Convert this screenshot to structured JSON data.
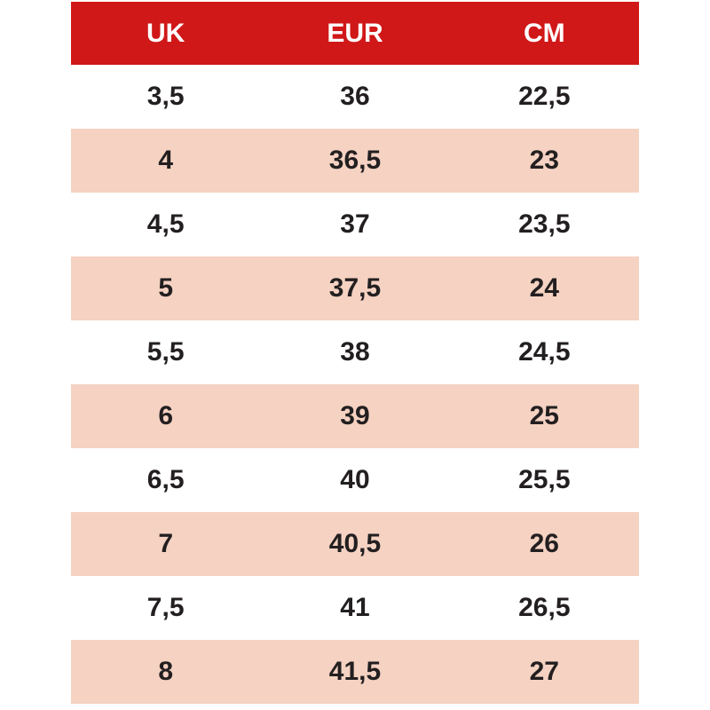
{
  "table": {
    "columns": [
      {
        "key": "uk",
        "label": "UK"
      },
      {
        "key": "eur",
        "label": "EUR"
      },
      {
        "key": "cm",
        "label": "CM"
      }
    ],
    "rows": [
      [
        "3,5",
        "36",
        "22,5"
      ],
      [
        "4",
        "36,5",
        "23"
      ],
      [
        "4,5",
        "37",
        "23,5"
      ],
      [
        "5",
        "37,5",
        "24"
      ],
      [
        "5,5",
        "38",
        "24,5"
      ],
      [
        "6",
        "39",
        "25"
      ],
      [
        "6,5",
        "40",
        "25,5"
      ],
      [
        "7",
        "40,5",
        "26"
      ],
      [
        "7,5",
        "41",
        "26,5"
      ],
      [
        "8",
        "41,5",
        "27"
      ]
    ]
  },
  "colors": {
    "header_bg": "#d01818",
    "header_text": "#ffffff",
    "row_bg": "#ffffff",
    "row_alt_bg": "#f5d2c2",
    "cell_text": "#231f20"
  }
}
